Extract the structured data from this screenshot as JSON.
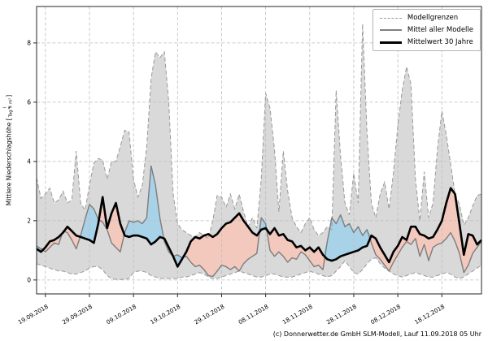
{
  "window": {
    "footer": "(c) Donnerwetter.de GmbH SLM-Modell, Lauf 11.09.2018 05 Uhr"
  },
  "y_axis": {
    "label_prefix": "Mittlere Niederschlagshöhe [",
    "frac_numerator": "l",
    "frac_denominator": "Tag × m²",
    "label_suffix": "]"
  },
  "legend": {
    "items": [
      {
        "label": "Modellgrenzen",
        "style": "dashed-gray"
      },
      {
        "label": "Mittel aller Modelle",
        "style": "solid-gray"
      },
      {
        "label": "Mittelwert 30 Jahre",
        "style": "solid-black-thick"
      }
    ]
  },
  "colors": {
    "band_fill": "#d9d9d9",
    "band_edge": "#999999",
    "above_fill": "#a8d2e8",
    "below_fill": "#f3c9bd",
    "model_mean_line": "#7d7d7d",
    "climate_line": "#000000",
    "grid": "#bdbdbd",
    "frame": "#262626",
    "text": "#000000"
  },
  "chart_data": {
    "type": "line",
    "title": "",
    "xlabel": "",
    "ylabel": "Mittlere Niederschlagshöhe [l/(Tag × m²)]",
    "x_start_date": "17.09.2018",
    "x_step_days": 1,
    "x_tick_indices": [
      2,
      12,
      22,
      32,
      42,
      52,
      62,
      72,
      82,
      92
    ],
    "x_tick_labels": [
      "19.09.2018",
      "29.09.2018",
      "09.10.2018",
      "19.10.2018",
      "29.10.2018",
      "08.11.2018",
      "18.11.2018",
      "28.11.2018",
      "08.12.2018",
      "18.12.2018"
    ],
    "y_ticks": [
      0,
      2,
      4,
      6,
      8
    ],
    "ylim": [
      -0.47,
      9.23
    ],
    "grid": true,
    "legend_position": "top-right",
    "series": [
      {
        "name": "Modellgrenzen obere Grenze",
        "role": "envelope_upper",
        "values": [
          3.45,
          2.75,
          2.9,
          3.1,
          2.6,
          2.7,
          3.0,
          2.6,
          2.7,
          4.35,
          2.6,
          2.35,
          3.2,
          3.95,
          4.1,
          4.05,
          3.4,
          4.0,
          4.0,
          4.5,
          5.05,
          5.0,
          3.4,
          2.8,
          3.2,
          4.5,
          6.8,
          7.7,
          7.5,
          7.7,
          6.0,
          2.9,
          1.9,
          1.7,
          1.6,
          1.5,
          1.45,
          1.6,
          1.5,
          1.4,
          2.0,
          2.85,
          2.8,
          2.45,
          2.9,
          2.4,
          2.9,
          2.3,
          1.8,
          2.1,
          1.75,
          3.4,
          6.3,
          5.8,
          4.4,
          2.3,
          4.35,
          3.0,
          2.1,
          1.8,
          1.6,
          1.9,
          2.1,
          1.7,
          1.5,
          1.6,
          1.8,
          1.7,
          6.4,
          4.2,
          2.6,
          2.2,
          3.6,
          2.6,
          8.65,
          5.0,
          2.6,
          2.1,
          2.9,
          3.3,
          2.4,
          3.6,
          5.2,
          6.4,
          7.2,
          6.6,
          3.4,
          2.0,
          3.65,
          2.1,
          2.6,
          4.4,
          5.7,
          4.9,
          3.9,
          2.9,
          2.55,
          1.85,
          2.1,
          2.5,
          2.85,
          2.9
        ]
      },
      {
        "name": "Modellgrenzen untere Grenze",
        "role": "envelope_lower",
        "values": [
          0.55,
          0.5,
          0.45,
          0.4,
          0.35,
          0.3,
          0.3,
          0.25,
          0.2,
          0.2,
          0.25,
          0.3,
          0.4,
          0.45,
          0.45,
          0.35,
          0.15,
          0.05,
          0.02,
          0.02,
          0.02,
          0.05,
          0.25,
          0.3,
          0.3,
          0.25,
          0.15,
          0.1,
          0.05,
          0.05,
          0.05,
          0.05,
          0.05,
          0.1,
          0.1,
          0.15,
          0.2,
          0.25,
          0.2,
          0.1,
          0.05,
          0.05,
          0.1,
          0.15,
          0.2,
          0.25,
          0.3,
          0.25,
          0.2,
          0.15,
          0.1,
          0.1,
          0.15,
          0.2,
          0.2,
          0.15,
          0.1,
          0.1,
          0.1,
          0.15,
          0.2,
          0.25,
          0.3,
          0.25,
          0.2,
          0.15,
          0.1,
          0.15,
          0.3,
          0.45,
          0.65,
          0.45,
          0.25,
          0.2,
          0.35,
          0.55,
          0.7,
          0.75,
          0.55,
          0.4,
          0.3,
          0.2,
          0.15,
          0.1,
          0.15,
          0.2,
          0.25,
          0.2,
          0.15,
          0.1,
          0.1,
          0.15,
          0.2,
          0.25,
          0.2,
          0.1,
          0.05,
          0.1,
          0.2,
          0.3,
          0.4,
          0.5
        ]
      },
      {
        "name": "Mittel aller Modelle",
        "role": "model_mean",
        "values": [
          1.15,
          1.05,
          0.95,
          1.1,
          1.25,
          1.2,
          1.65,
          1.6,
          1.35,
          1.05,
          1.5,
          2.05,
          2.55,
          2.4,
          2.05,
          1.95,
          1.7,
          1.25,
          1.1,
          0.95,
          1.6,
          2.0,
          1.95,
          2.0,
          1.9,
          2.1,
          3.85,
          3.2,
          2.1,
          1.3,
          0.95,
          0.8,
          0.85,
          0.75,
          0.8,
          0.6,
          0.45,
          0.5,
          0.35,
          0.15,
          0.12,
          0.3,
          0.5,
          0.45,
          0.35,
          0.45,
          0.3,
          0.55,
          0.7,
          0.8,
          0.9,
          2.1,
          1.9,
          1.0,
          0.8,
          0.95,
          0.8,
          0.6,
          0.75,
          0.7,
          0.95,
          0.85,
          0.65,
          0.45,
          0.5,
          0.35,
          1.3,
          2.1,
          1.9,
          2.2,
          1.8,
          1.9,
          1.6,
          1.8,
          1.5,
          1.7,
          1.25,
          0.85,
          0.7,
          0.5,
          0.3,
          0.6,
          0.85,
          1.1,
          1.3,
          1.2,
          1.4,
          0.8,
          1.2,
          0.65,
          1.1,
          1.2,
          1.25,
          1.4,
          1.6,
          1.3,
          0.9,
          0.25,
          0.5,
          0.9,
          1.1,
          1.3
        ]
      },
      {
        "name": "Mittelwert 30 Jahre",
        "role": "climate_mean",
        "values": [
          1.05,
          0.95,
          1.1,
          1.3,
          1.35,
          1.45,
          1.6,
          1.8,
          1.65,
          1.5,
          1.45,
          1.4,
          1.35,
          1.25,
          1.9,
          2.8,
          1.75,
          2.25,
          2.6,
          1.9,
          1.5,
          1.45,
          1.5,
          1.5,
          1.45,
          1.4,
          1.2,
          1.3,
          1.45,
          1.4,
          1.1,
          0.8,
          0.45,
          0.7,
          0.95,
          1.3,
          1.45,
          1.4,
          1.5,
          1.55,
          1.45,
          1.55,
          1.75,
          1.9,
          1.95,
          2.1,
          2.25,
          2.0,
          1.8,
          1.6,
          1.5,
          1.7,
          1.75,
          1.55,
          1.75,
          1.5,
          1.55,
          1.35,
          1.3,
          1.1,
          1.15,
          1.0,
          1.1,
          0.95,
          1.1,
          0.85,
          0.7,
          0.65,
          0.7,
          0.8,
          0.85,
          0.9,
          0.95,
          1.0,
          1.1,
          1.15,
          1.5,
          1.4,
          1.1,
          0.85,
          0.6,
          0.95,
          1.15,
          1.45,
          1.35,
          1.8,
          1.8,
          1.55,
          1.5,
          1.4,
          1.45,
          1.7,
          2.0,
          2.6,
          3.1,
          2.9,
          1.9,
          0.85,
          1.55,
          1.5,
          1.2,
          1.35
        ]
      }
    ]
  }
}
